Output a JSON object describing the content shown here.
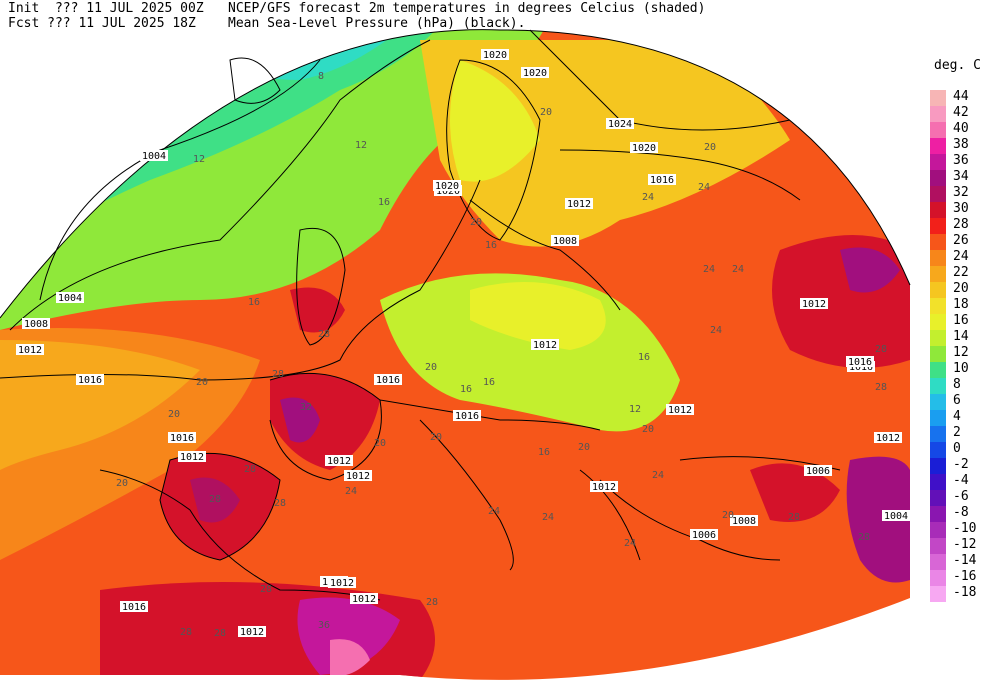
{
  "header": {
    "init_line": "Init  ??? 11 JUL 2025 00Z",
    "fcst_line": "Fcst ??? 11 JUL 2025 18Z",
    "title_line1": "NCEP/GFS forecast 2m temperatures in degrees Celcius (shaded)",
    "title_line2": "Mean Sea-Level Pressure (hPa) (black)."
  },
  "legend": {
    "title": "deg. C",
    "items": [
      {
        "value": "44",
        "color": "#f7b5b5"
      },
      {
        "value": "42",
        "color": "#f89ac0"
      },
      {
        "value": "40",
        "color": "#f56fb0"
      },
      {
        "value": "38",
        "color": "#ee1fa3"
      },
      {
        "value": "36",
        "color": "#c4179b"
      },
      {
        "value": "34",
        "color": "#a10f7e"
      },
      {
        "value": "32",
        "color": "#b01060"
      },
      {
        "value": "30",
        "color": "#d4122a"
      },
      {
        "value": "28",
        "color": "#f2201a"
      },
      {
        "value": "26",
        "color": "#f6561a"
      },
      {
        "value": "24",
        "color": "#f7861a"
      },
      {
        "value": "22",
        "color": "#f7a81c"
      },
      {
        "value": "20",
        "color": "#f5c620"
      },
      {
        "value": "18",
        "color": "#f2e12a"
      },
      {
        "value": "16",
        "color": "#e8f02a"
      },
      {
        "value": "14",
        "color": "#c3ef2e"
      },
      {
        "value": "12",
        "color": "#8fe83a"
      },
      {
        "value": "10",
        "color": "#3fe086"
      },
      {
        "value": "8",
        "color": "#2fdcc4"
      },
      {
        "value": "6",
        "color": "#24bde8"
      },
      {
        "value": "4",
        "color": "#1a9ef0"
      },
      {
        "value": "2",
        "color": "#1772ee"
      },
      {
        "value": "0",
        "color": "#1548e6"
      },
      {
        "value": "-2",
        "color": "#1a1ed6"
      },
      {
        "value": "-4",
        "color": "#4010c8"
      },
      {
        "value": "-6",
        "color": "#6210b8"
      },
      {
        "value": "-8",
        "color": "#8a16b0"
      },
      {
        "value": "-10",
        "color": "#a82cb8"
      },
      {
        "value": "-12",
        "color": "#c247c6"
      },
      {
        "value": "-14",
        "color": "#d866d6"
      },
      {
        "value": "-16",
        "color": "#ea86e6"
      },
      {
        "value": "-18",
        "color": "#f7a8f2"
      }
    ]
  },
  "pressure_labels": [
    "1004",
    "1004",
    "1008",
    "1012",
    "1016",
    "1020",
    "1020",
    "1024",
    "1020",
    "1016",
    "1012",
    "1020",
    "1008",
    "1012",
    "1016",
    "1016",
    "1012",
    "1012",
    "1012",
    "1012",
    "1012",
    "1012",
    "1016",
    "1012",
    "1016",
    "1012",
    "1006",
    "1008",
    "1006",
    "1004",
    "1012",
    "1016",
    "1016",
    "1012",
    "1012",
    "1020"
  ],
  "temp_labels": [
    "8",
    "12",
    "12",
    "16",
    "16",
    "20",
    "20",
    "20",
    "20",
    "24",
    "24",
    "24",
    "24",
    "24",
    "20",
    "16",
    "16",
    "20",
    "16",
    "12",
    "20",
    "20",
    "20",
    "24",
    "28",
    "28",
    "32",
    "28",
    "28",
    "28",
    "24",
    "24",
    "28",
    "20",
    "20",
    "24",
    "28",
    "36",
    "16",
    "20",
    "16",
    "28",
    "28",
    "28",
    "28",
    "28",
    "28",
    "24"
  ]
}
